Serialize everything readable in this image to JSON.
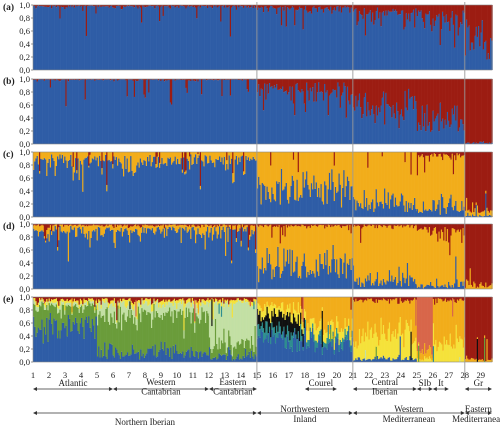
{
  "colors": {
    "blue": "#2f5da6",
    "red": "#9c1c12",
    "orange": "#f2ad1a",
    "green": "#6a9c3a",
    "lightgreen": "#c3e0a4",
    "yellow": "#f5e23a",
    "darkred": "#8b1a10",
    "black": "#111111",
    "salmon": "#d8664a",
    "teal": "#2f8f8f",
    "frame": "#888888",
    "boundary": "#9a9a9a"
  },
  "chart_data": {
    "type": "bar",
    "stacked": true,
    "description_panels": [
      "(a)",
      "(b)",
      "(c)",
      "(d)",
      "(e)"
    ],
    "y_ticks": [
      "1,0",
      "0,8",
      "0,6",
      "0,4",
      "0,2",
      "0,0"
    ],
    "ylim": [
      0,
      1
    ],
    "populations": [
      "1",
      "2",
      "3",
      "4",
      "5",
      "6",
      "7",
      "8",
      "9",
      "10",
      "11",
      "12",
      "13",
      "14",
      "15",
      "16",
      "17",
      "18",
      "19",
      "20",
      "21",
      "22",
      "23",
      "24",
      "25",
      "26",
      "27",
      "28",
      "29"
    ],
    "panels": [
      {
        "label": "(a)",
        "clusters": [
          "blue",
          "red"
        ],
        "description": "Two clusters; blue near 1.0 up to ~pop 21, then progressively more red toward the east",
        "segments": [
          {
            "from": 1,
            "to": 15,
            "blue": 0.98,
            "red": 0.02
          },
          {
            "from": 15,
            "to": 21,
            "blue": 0.95,
            "red": 0.05
          },
          {
            "from": 21,
            "to": 25,
            "blue": 0.88,
            "red": 0.12
          },
          {
            "from": 25,
            "to": 28,
            "blue": 0.8,
            "red": 0.2
          },
          {
            "from": 28,
            "to": 29.7,
            "blue": 0.45,
            "red": 0.55
          }
        ]
      },
      {
        "label": "(b)",
        "clusters": [
          "blue",
          "red"
        ],
        "segments": [
          {
            "from": 1,
            "to": 15,
            "blue": 0.99,
            "red": 0.01
          },
          {
            "from": 15,
            "to": 21,
            "blue": 0.82,
            "red": 0.18
          },
          {
            "from": 21,
            "to": 25,
            "blue": 0.55,
            "red": 0.45
          },
          {
            "from": 25,
            "to": 28,
            "blue": 0.35,
            "red": 0.65
          },
          {
            "from": 28,
            "to": 29.7,
            "blue": 0.02,
            "red": 0.98
          }
        ]
      },
      {
        "label": "(c)",
        "clusters": [
          "blue",
          "orange",
          "red"
        ],
        "segments": [
          {
            "from": 1,
            "to": 15,
            "blue": 0.88,
            "orange": 0.12,
            "red": 0.0
          },
          {
            "from": 15,
            "to": 21,
            "blue": 0.45,
            "orange": 0.55,
            "red": 0.0
          },
          {
            "from": 21,
            "to": 25,
            "blue": 0.2,
            "orange": 0.8,
            "red": 0.0
          },
          {
            "from": 25,
            "to": 28,
            "blue": 0.15,
            "orange": 0.8,
            "red": 0.05
          },
          {
            "from": 28,
            "to": 29.7,
            "blue": 0.02,
            "orange": 0.08,
            "red": 0.9
          }
        ]
      },
      {
        "label": "(d)",
        "clusters": [
          "blue",
          "orange",
          "red"
        ],
        "segments": [
          {
            "from": 1,
            "to": 15,
            "blue": 0.9,
            "orange": 0.08,
            "red": 0.02
          },
          {
            "from": 15,
            "to": 21,
            "blue": 0.35,
            "orange": 0.62,
            "red": 0.03
          },
          {
            "from": 21,
            "to": 25,
            "blue": 0.12,
            "orange": 0.85,
            "red": 0.03
          },
          {
            "from": 25,
            "to": 28,
            "blue": 0.05,
            "orange": 0.85,
            "red": 0.1
          },
          {
            "from": 28,
            "to": 29.7,
            "blue": 0.0,
            "orange": 0.05,
            "red": 0.95
          }
        ]
      },
      {
        "label": "(e)",
        "clusters": [
          "blue",
          "green",
          "lightgreen",
          "teal",
          "black",
          "yellow",
          "orange",
          "salmon",
          "red"
        ],
        "segments": [
          {
            "from": 1,
            "to": 5,
            "blue": 0.55,
            "green": 0.3,
            "lightgreen": 0.05,
            "yellow": 0.05,
            "red": 0.05
          },
          {
            "from": 5,
            "to": 12,
            "blue": 0.15,
            "green": 0.6,
            "lightgreen": 0.15,
            "yellow": 0.05,
            "red": 0.05
          },
          {
            "from": 12,
            "to": 15,
            "blue": 0.1,
            "green": 0.2,
            "lightgreen": 0.6,
            "yellow": 0.05,
            "red": 0.05
          },
          {
            "from": 15,
            "to": 18,
            "blue": 0.35,
            "teal": 0.15,
            "black": 0.2,
            "yellow": 0.15,
            "orange": 0.15
          },
          {
            "from": 18,
            "to": 21,
            "blue": 0.3,
            "teal": 0.1,
            "yellow": 0.15,
            "orange": 0.45
          },
          {
            "from": 21,
            "to": 25,
            "blue": 0.05,
            "yellow": 0.35,
            "orange": 0.55,
            "red": 0.05
          },
          {
            "from": 25,
            "to": 26,
            "yellow": 0.05,
            "orange": 0.1,
            "salmon": 0.85
          },
          {
            "from": 26,
            "to": 28,
            "yellow": 0.3,
            "orange": 0.65,
            "red": 0.05
          },
          {
            "from": 28,
            "to": 29.7,
            "orange": 0.05,
            "red": 0.95
          }
        ]
      }
    ],
    "boundaries_at": [
      15,
      21,
      28
    ],
    "population_groups": [
      {
        "label": "Atlantic",
        "from": 1,
        "to": 6
      },
      {
        "label": "Western\nCantabrian",
        "from": 6,
        "to": 12
      },
      {
        "label": "Eastern\nCantabrian",
        "from": 12,
        "to": 15
      },
      {
        "label": "Courel",
        "from": 18,
        "to": 20
      },
      {
        "label": "Central\nIberian",
        "from": 21,
        "to": 25
      },
      {
        "label": "SIb",
        "from": 25,
        "to": 26
      },
      {
        "label": "It",
        "from": 26,
        "to": 27
      },
      {
        "label": "Gr",
        "from": 28,
        "to": 29.7
      }
    ],
    "regions": [
      {
        "label": "Northern Iberian",
        "from": 1,
        "to": 15
      },
      {
        "label": "Northwestern\nInland",
        "from": 15,
        "to": 21
      },
      {
        "label": "Western\nMediterranean",
        "from": 21,
        "to": 28
      },
      {
        "label": "Eastern\nMediterranean",
        "from": 28,
        "to": 29.7
      }
    ]
  }
}
